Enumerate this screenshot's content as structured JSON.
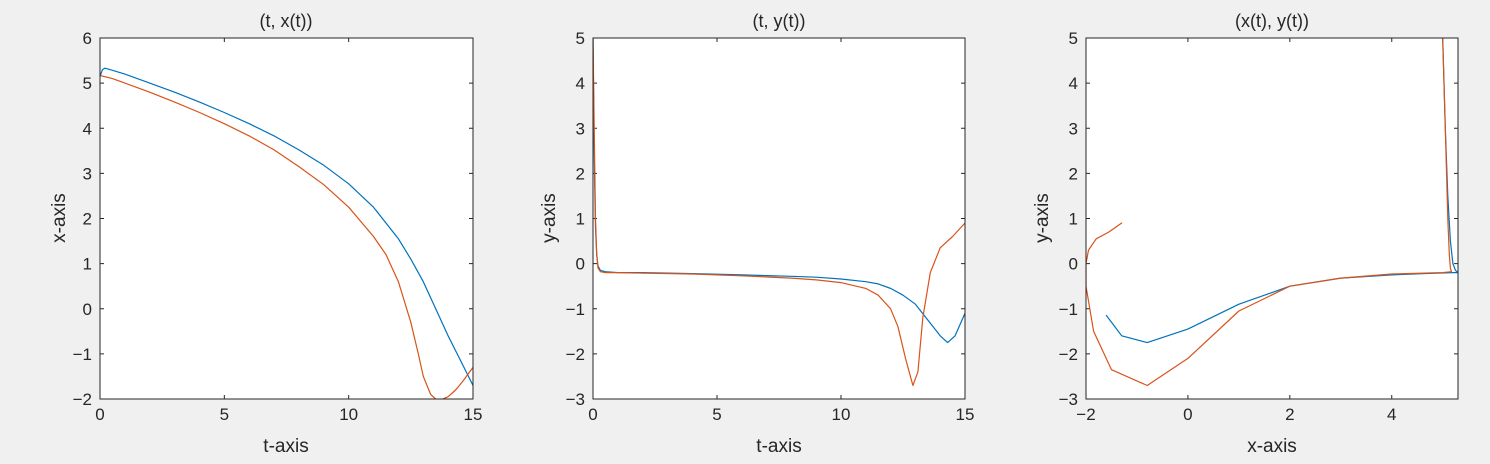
{
  "colors": {
    "series1": "#0072BD",
    "series2": "#D95319",
    "axes": "#262626",
    "background": "#f0f0f0",
    "plot_bg": "#ffffff"
  },
  "chart_data": [
    {
      "type": "line",
      "title": "(t, x(t))",
      "xlabel": "t-axis",
      "ylabel": "x-axis",
      "xlim": [
        0,
        15
      ],
      "ylim": [
        -2,
        6
      ],
      "xticks": [
        0,
        5,
        10,
        15
      ],
      "yticks": [
        -2,
        -1,
        0,
        1,
        2,
        3,
        4,
        5,
        6
      ],
      "xticklabels": [
        "0",
        "5",
        "10",
        "15"
      ],
      "yticklabels": [
        "−2",
        "−1",
        "0",
        "1",
        "2",
        "3",
        "4",
        "5",
        "6"
      ],
      "grid": false,
      "series": [
        {
          "x": [
            0,
            0.1,
            0.2,
            0.4,
            1,
            2,
            3,
            4,
            5,
            6,
            7,
            8,
            9,
            10,
            11,
            12,
            12.5,
            13,
            13.5,
            14,
            14.5,
            15
          ],
          "y": [
            5.15,
            5.3,
            5.33,
            5.3,
            5.2,
            5.0,
            4.8,
            4.58,
            4.35,
            4.1,
            3.83,
            3.52,
            3.18,
            2.77,
            2.25,
            1.55,
            1.1,
            0.6,
            0.0,
            -0.6,
            -1.15,
            -1.7
          ]
        },
        {
          "x": [
            0,
            0.5,
            1,
            2,
            3,
            4,
            5,
            6,
            7,
            8,
            9,
            10,
            11,
            11.5,
            12,
            12.5,
            12.8,
            13,
            13.3,
            13.5,
            13.7,
            14,
            14.3,
            14.6,
            15
          ],
          "y": [
            5.17,
            5.1,
            5.0,
            4.8,
            4.58,
            4.35,
            4.1,
            3.83,
            3.52,
            3.15,
            2.75,
            2.25,
            1.6,
            1.2,
            0.6,
            -0.3,
            -1.0,
            -1.5,
            -1.9,
            -2.0,
            -2.02,
            -1.95,
            -1.8,
            -1.6,
            -1.3
          ]
        }
      ]
    },
    {
      "type": "line",
      "title": "(t, y(t))",
      "xlabel": "t-axis",
      "ylabel": "y-axis",
      "xlim": [
        0,
        15
      ],
      "ylim": [
        -3,
        5
      ],
      "xticks": [
        0,
        5,
        10,
        15
      ],
      "yticks": [
        -3,
        -2,
        -1,
        0,
        1,
        2,
        3,
        4,
        5
      ],
      "xticklabels": [
        "0",
        "5",
        "10",
        "15"
      ],
      "yticklabels": [
        "−3",
        "−2",
        "−1",
        "0",
        "1",
        "2",
        "3",
        "4",
        "5"
      ],
      "grid": false,
      "series": [
        {
          "x": [
            0,
            0.03,
            0.06,
            0.1,
            0.15,
            0.2,
            0.3,
            0.5,
            1,
            2,
            4,
            6,
            8,
            9,
            10,
            11,
            11.5,
            12,
            12.5,
            13,
            13.5,
            14,
            14.3,
            14.6,
            15
          ],
          "y": [
            5,
            3.5,
            2.0,
            0.8,
            0.2,
            -0.05,
            -0.15,
            -0.18,
            -0.2,
            -0.2,
            -0.22,
            -0.25,
            -0.28,
            -0.3,
            -0.34,
            -0.4,
            -0.45,
            -0.55,
            -0.7,
            -0.9,
            -1.25,
            -1.6,
            -1.75,
            -1.6,
            -1.1
          ]
        },
        {
          "x": [
            0,
            0.05,
            0.1,
            0.15,
            0.2,
            0.3,
            0.5,
            1,
            2,
            4,
            6,
            8,
            9,
            10,
            11,
            11.5,
            12,
            12.3,
            12.6,
            12.9,
            13.1,
            13.3,
            13.6,
            14,
            14.5,
            15
          ],
          "y": [
            5,
            3.0,
            1.0,
            0.2,
            -0.1,
            -0.18,
            -0.2,
            -0.2,
            -0.21,
            -0.23,
            -0.27,
            -0.32,
            -0.36,
            -0.42,
            -0.55,
            -0.7,
            -1.0,
            -1.4,
            -2.1,
            -2.7,
            -2.4,
            -1.2,
            -0.2,
            0.35,
            0.6,
            0.9
          ]
        }
      ]
    },
    {
      "type": "line",
      "title": "(x(t), y(t))",
      "xlabel": "x-axis",
      "ylabel": "y-axis",
      "xlim": [
        -2,
        5.3
      ],
      "ylim": [
        -3,
        5
      ],
      "xticks": [
        -2,
        0,
        2,
        4
      ],
      "yticks": [
        -3,
        -2,
        -1,
        0,
        1,
        2,
        3,
        4,
        5
      ],
      "xticklabels": [
        "−2",
        "0",
        "2",
        "4"
      ],
      "yticklabels": [
        "−3",
        "−2",
        "−1",
        "0",
        "1",
        "2",
        "3",
        "4",
        "5"
      ],
      "grid": false,
      "series": [
        {
          "x": [
            5.0,
            5.05,
            5.1,
            5.15,
            5.2,
            5.25,
            5.3,
            5.3,
            5.2,
            4.6,
            4.0,
            3.0,
            2.0,
            1.0,
            0.0,
            -0.8,
            -1.3,
            -1.6
          ],
          "y": [
            5,
            3.0,
            1.5,
            0.5,
            0.0,
            -0.15,
            -0.2,
            -0.2,
            -0.2,
            -0.22,
            -0.25,
            -0.32,
            -0.5,
            -0.9,
            -1.45,
            -1.75,
            -1.6,
            -1.15
          ]
        },
        {
          "x": [
            5.0,
            5.05,
            5.1,
            5.13,
            5.15,
            5.17,
            5.0,
            4.0,
            3.0,
            2.0,
            1.0,
            0.0,
            -0.8,
            -1.5,
            -1.85,
            -2.0,
            -2.0,
            -1.95,
            -1.8,
            -1.55,
            -1.3
          ],
          "y": [
            5,
            3.0,
            1.0,
            0.2,
            -0.1,
            -0.18,
            -0.2,
            -0.23,
            -0.32,
            -0.5,
            -1.05,
            -2.1,
            -2.7,
            -2.35,
            -1.5,
            -0.5,
            0.0,
            0.3,
            0.55,
            0.7,
            0.9
          ]
        }
      ]
    }
  ]
}
